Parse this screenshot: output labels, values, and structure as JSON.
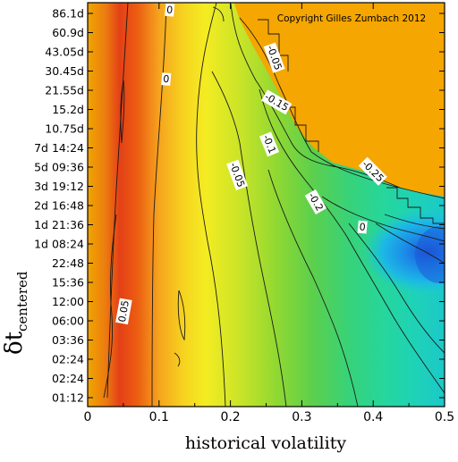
{
  "chart_data": {
    "type": "heatmap",
    "title": "",
    "copyright": "Copyright Gilles Zumbach 2012",
    "xlabel": "historical volatility",
    "ylabel_main": "δt",
    "ylabel_sub": "centered",
    "x_ticks": [
      "0",
      "0.1",
      "0.2",
      "0.3",
      "0.4",
      "0.5"
    ],
    "x_tick_values": [
      0,
      0.1,
      0.2,
      0.3,
      0.4,
      0.5
    ],
    "xlim": [
      0,
      0.5
    ],
    "y_ticks": [
      "01:12",
      "02:24",
      "02:24",
      "03:36",
      "06:00",
      "12:00",
      "15:36",
      "22:48",
      "1d 08:24",
      "1d 21:36",
      "2d 16:48",
      "3d 19:12",
      "5d 09:36",
      "7d 14:24",
      "10.75d",
      "15.2d",
      "21.55d",
      "30.45d",
      "43.05d",
      "60.9d",
      "86.1d"
    ],
    "colorscale": [
      "#f2a000",
      "#e85a14",
      "#f4ec1c",
      "#8cd632",
      "#28d28c",
      "#14aaf0",
      "#2066d6"
    ],
    "contour_labels": [
      {
        "text": "0",
        "x": 0.11,
        "y": 16.6
      },
      {
        "text": "0.05",
        "x": 0.05,
        "y": 4.5
      },
      {
        "text": "0",
        "x": 0.115,
        "y": 20.2
      },
      {
        "text": "-0.05",
        "x": 0.21,
        "y": 11.6
      },
      {
        "text": "-0.05",
        "x": 0.262,
        "y": 17.7
      },
      {
        "text": "-0.1",
        "x": 0.255,
        "y": 13.2
      },
      {
        "text": "-0.15",
        "x": 0.265,
        "y": 15.4
      },
      {
        "text": "0",
        "x": 0.385,
        "y": 8.9
      },
      {
        "text": "-0.2",
        "x": 0.32,
        "y": 10.2
      },
      {
        "text": "-0.25",
        "x": 0.4,
        "y": 11.8
      }
    ],
    "contour_levels": [
      0.05,
      0,
      -0.05,
      -0.1,
      -0.15,
      -0.2,
      -0.25
    ]
  }
}
